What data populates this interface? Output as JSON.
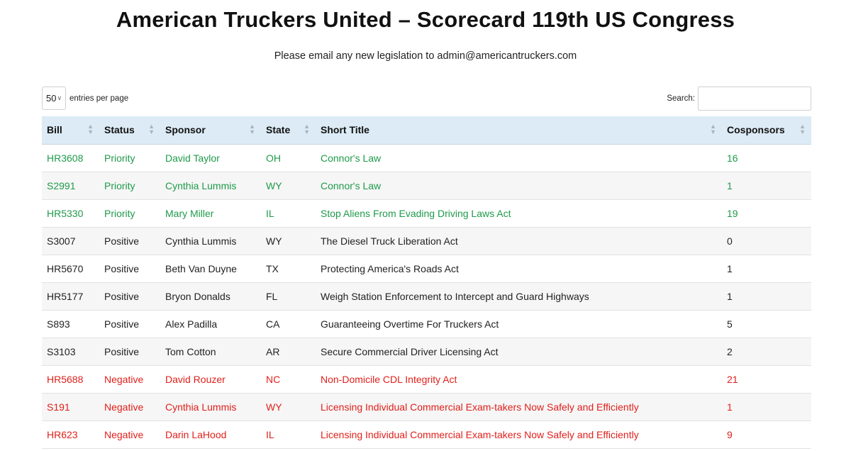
{
  "page": {
    "title": "American Truckers United – Scorecard 119th US Congress",
    "subtitle": "Please email any new legislation to admin@americantruckers.com"
  },
  "controls": {
    "entries_value": "50",
    "entries_label": "entries per page",
    "search_label": "Search:",
    "search_value": ""
  },
  "colors": {
    "priority": "#1f9a4a",
    "negative": "#e0201b",
    "header_bg": "#dcebf5"
  },
  "table": {
    "headers": [
      "Bill",
      "Status",
      "Sponsor",
      "State",
      "Short Title",
      "Cosponsors"
    ],
    "rows": [
      {
        "bill": "HR3608",
        "status": "Priority",
        "sponsor": "David Taylor",
        "state": "OH",
        "title": "Connor's Law",
        "cosponsors": "16"
      },
      {
        "bill": "S2991",
        "status": "Priority",
        "sponsor": "Cynthia Lummis",
        "state": "WY",
        "title": "Connor's Law",
        "cosponsors": "1"
      },
      {
        "bill": "HR5330",
        "status": "Priority",
        "sponsor": "Mary Miller",
        "state": "IL",
        "title": "Stop Aliens From Evading Driving Laws Act",
        "cosponsors": "19"
      },
      {
        "bill": "S3007",
        "status": "Positive",
        "sponsor": "Cynthia Lummis",
        "state": "WY",
        "title": "The Diesel Truck Liberation Act",
        "cosponsors": "0"
      },
      {
        "bill": "HR5670",
        "status": "Positive",
        "sponsor": "Beth Van Duyne",
        "state": "TX",
        "title": "Protecting America's Roads Act",
        "cosponsors": "1"
      },
      {
        "bill": "HR5177",
        "status": "Positive",
        "sponsor": "Bryon Donalds",
        "state": "FL",
        "title": "Weigh Station Enforcement to Intercept and Guard Highways",
        "cosponsors": "1"
      },
      {
        "bill": "S893",
        "status": "Positive",
        "sponsor": "Alex Padilla",
        "state": "CA",
        "title": "Guaranteeing Overtime For Truckers Act",
        "cosponsors": "5"
      },
      {
        "bill": "S3103",
        "status": "Positive",
        "sponsor": "Tom Cotton",
        "state": "AR",
        "title": "Secure Commercial Driver Licensing Act",
        "cosponsors": "2"
      },
      {
        "bill": "HR5688",
        "status": "Negative",
        "sponsor": "David Rouzer",
        "state": "NC",
        "title": "Non-Domicile CDL Integrity Act",
        "cosponsors": "21"
      },
      {
        "bill": "S191",
        "status": "Negative",
        "sponsor": "Cynthia Lummis",
        "state": "WY",
        "title": "Licensing Individual Commercial Exam-takers Now Safely and Efficiently",
        "cosponsors": "1"
      },
      {
        "bill": "HR623",
        "status": "Negative",
        "sponsor": "Darin LaHood",
        "state": "IL",
        "title": "Licensing Individual Commercial Exam-takers Now Safely and Efficiently",
        "cosponsors": "9"
      }
    ]
  }
}
